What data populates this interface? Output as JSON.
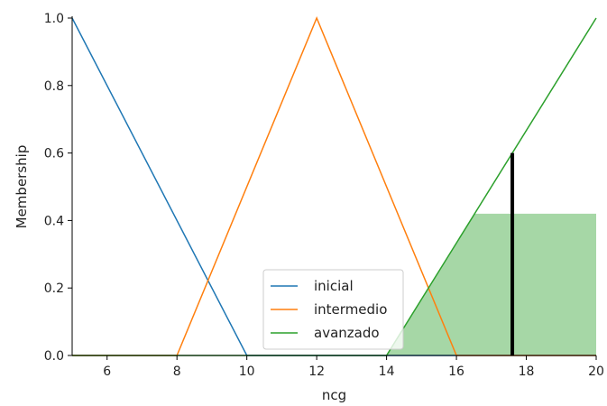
{
  "chart_data": {
    "type": "line",
    "xlabel": "ncg",
    "ylabel": "Membership",
    "xlim": [
      5,
      20
    ],
    "ylim": [
      0,
      1
    ],
    "x_ticks": [
      "6",
      "8",
      "10",
      "12",
      "14",
      "16",
      "18",
      "20"
    ],
    "y_ticks": [
      "0.0",
      "0.2",
      "0.4",
      "0.6",
      "0.8",
      "1.0"
    ],
    "series": [
      {
        "name": "inicial",
        "color": "#1f77b4",
        "x": [
          5,
          10,
          20
        ],
        "y": [
          1,
          0,
          0
        ]
      },
      {
        "name": "intermedio",
        "color": "#ff7f0e",
        "x": [
          5,
          8,
          12,
          16,
          20
        ],
        "y": [
          0,
          0,
          1,
          0,
          0
        ]
      },
      {
        "name": "avanzado",
        "color": "#2ca02c",
        "x": [
          5,
          14,
          20
        ],
        "y": [
          0,
          0,
          1
        ]
      }
    ],
    "activation": {
      "color": "#2ca02c",
      "clip_level": 0.42,
      "shape": {
        "x": [
          14,
          16.52,
          20,
          20,
          14
        ],
        "y": [
          0,
          0.42,
          0.42,
          0,
          0
        ]
      }
    },
    "crisp_output": {
      "x": 17.6,
      "y": 0.6,
      "color": "#000000"
    },
    "legend": {
      "placement": "lower-center",
      "entries": [
        "inicial",
        "intermedio",
        "avanzado"
      ]
    },
    "grid": false
  }
}
